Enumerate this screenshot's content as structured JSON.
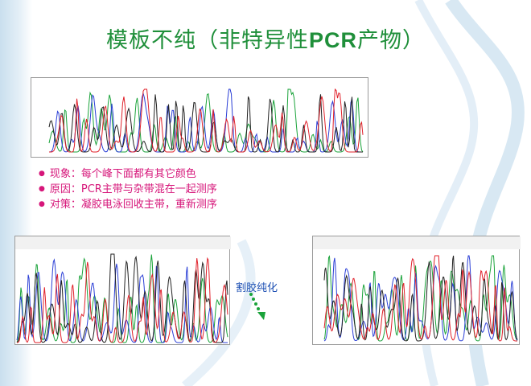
{
  "slide": {
    "title_prefix": "模板不纯（非特异性",
    "title_pcr": "PCR",
    "title_suffix": "产物）"
  },
  "bullets": [
    "现象：每个峰下面都有其它颜色",
    "原因：PCR主带与杂带混在一起测序",
    "对策：凝胶电泳回收主带，重新测序"
  ],
  "arrow_label": "割胶纯化",
  "colors": {
    "title": "#1f8f3a",
    "bullets": "#d6167a",
    "arrow_label": "#1c4fb3",
    "trace_a": "#1aa33a",
    "trace_c": "#2b3fd6",
    "trace_g": "#222222",
    "trace_t": "#e0202a"
  },
  "icons": {
    "bullet": "bullet-dot-icon",
    "arrow": "dotted-down-arrow-icon"
  }
}
